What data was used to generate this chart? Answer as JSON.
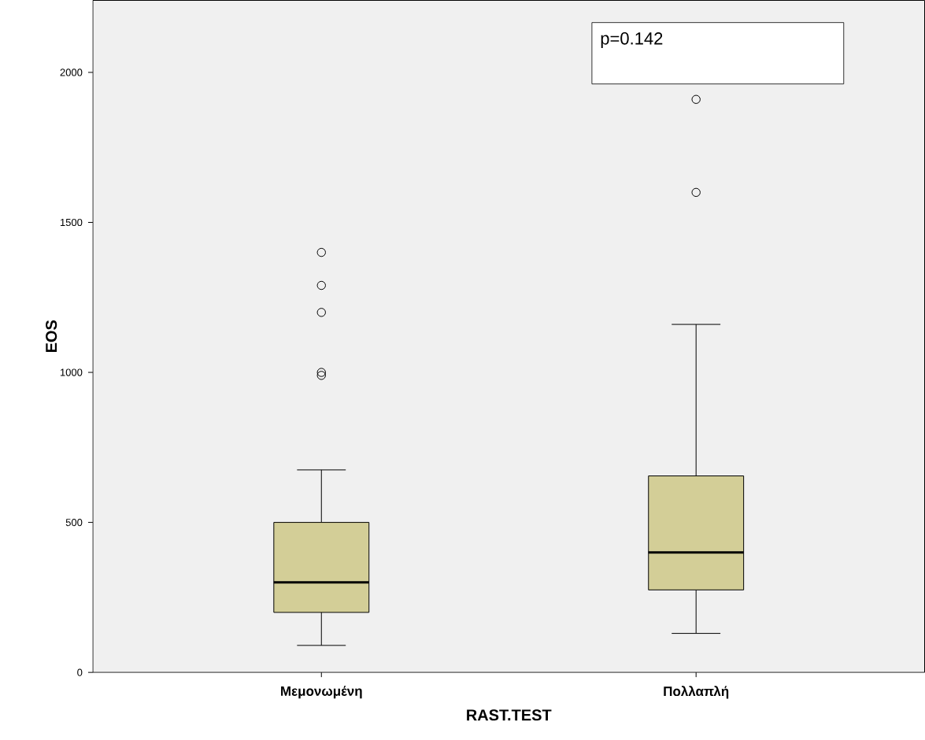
{
  "chart_data": {
    "type": "box",
    "categories": [
      "Μεμονωμένη",
      "Πολλαπλή"
    ],
    "xlabel": "RAST.TEST",
    "ylabel": "EOS",
    "ylim": [
      0,
      2240
    ],
    "yticks": [
      0,
      500,
      1000,
      1500,
      2000
    ],
    "grid": false,
    "series": [
      {
        "color": "#d3ce97",
        "boxes": [
          {
            "low": 90,
            "q1": 200,
            "median": 300,
            "q3": 500,
            "high": 675,
            "outliers": [
              1400,
              1290,
              1200,
              1000,
              990
            ]
          },
          {
            "low": 130,
            "q1": 275,
            "median": 400,
            "q3": 655,
            "high": 1160,
            "outliers": [
              1600,
              1910
            ]
          }
        ]
      }
    ],
    "annotations": [
      "p=0.142"
    ]
  }
}
